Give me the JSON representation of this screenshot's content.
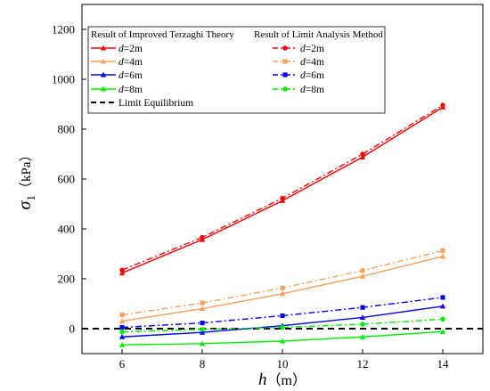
{
  "chart_data": {
    "type": "line",
    "title": "",
    "xlabel": {
      "var": "h",
      "unit": "（m）"
    },
    "ylabel": {
      "var": "σ",
      "sub": "1",
      "unit": "（kPa）"
    },
    "xlim": [
      5,
      15
    ],
    "ylim": [
      -100,
      1300
    ],
    "xticks": [
      6,
      8,
      10,
      12,
      14
    ],
    "yticks": [
      0,
      200,
      400,
      600,
      800,
      1000,
      1200
    ],
    "x": [
      6,
      8,
      10,
      12,
      14
    ],
    "legend_position": "top-left",
    "legend_headers": [
      "Result of Improved Terzaghi Theory",
      "Result of Limit Analysis Method"
    ],
    "series": [
      {
        "name": "d=2m",
        "var": "d",
        "eq": "=2m",
        "group": "terzaghi",
        "color": "#ff0000",
        "marker": "triangle",
        "dash": "solid",
        "values": [
          223,
          357,
          513,
          688,
          888
        ]
      },
      {
        "name": "d=4m",
        "var": "d",
        "eq": "=4m",
        "group": "terzaghi",
        "color": "#f5a05a",
        "marker": "triangle",
        "dash": "solid",
        "values": [
          30,
          80,
          140,
          210,
          290
        ]
      },
      {
        "name": "d=6m",
        "var": "d",
        "eq": "=6m",
        "group": "terzaghi",
        "color": "#0000ff",
        "marker": "triangle",
        "dash": "solid",
        "values": [
          -33,
          -15,
          12,
          45,
          90
        ]
      },
      {
        "name": "d=8m",
        "var": "d",
        "eq": "=8m",
        "group": "terzaghi",
        "color": "#00ee00",
        "marker": "triangle",
        "dash": "solid",
        "values": [
          -65,
          -60,
          -50,
          -33,
          -12
        ]
      },
      {
        "name": "d=2m",
        "var": "d",
        "eq": "=2m",
        "group": "limit",
        "color": "#ff0000",
        "marker": "circle",
        "dash": "dashdot",
        "values": [
          235,
          366,
          523,
          700,
          896
        ]
      },
      {
        "name": "d=4m",
        "var": "d",
        "eq": "=4m",
        "group": "limit",
        "color": "#f5a05a",
        "marker": "square",
        "dash": "dashdot",
        "values": [
          55,
          103,
          163,
          233,
          313
        ]
      },
      {
        "name": "d=6m",
        "var": "d",
        "eq": "=6m",
        "group": "limit",
        "color": "#0000ff",
        "marker": "square",
        "dash": "dashdot",
        "values": [
          5,
          23,
          52,
          85,
          125
        ]
      },
      {
        "name": "d=8m",
        "var": "d",
        "eq": "=8m",
        "group": "limit",
        "color": "#00ee00",
        "marker": "circle",
        "dash": "dashdot",
        "values": [
          -13,
          -3,
          5,
          18,
          38
        ]
      }
    ],
    "reference_line": {
      "name": "Limit Equilibrium",
      "y": 0,
      "color": "#000000",
      "dash": "dashed"
    }
  }
}
